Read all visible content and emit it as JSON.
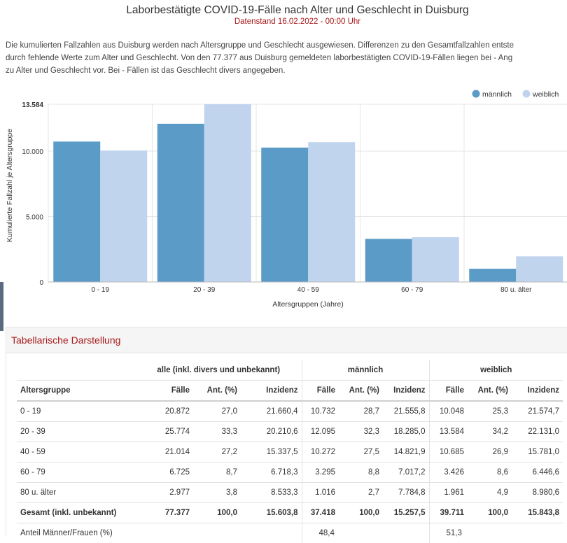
{
  "header": {
    "title": "Laborbestätigte COVID-19-Fälle nach Alter und Geschlecht in Duisburg",
    "subtitle": "Datenstand 16.02.2022 - 00:00 Uhr"
  },
  "description": {
    "line1": "Die kumulierten Fallzahlen aus Duisburg werden nach Altersgruppe und Geschlecht ausgewiesen. Differenzen zu den Gesamtfallzahlen entste",
    "line2": "durch fehlende Werte zum Alter und Geschlecht. Von den 77.377 aus Duisburg gemeldeten laborbestätigten COVID-19-Fällen liegen bei - Ang",
    "line3": "zu Alter und Geschlecht vor. Bei - Fällen ist das Geschlecht divers angegeben."
  },
  "chart_data": {
    "type": "bar",
    "title": "",
    "xlabel": "Altersgruppen (Jahre)",
    "ylabel": "Kumulierte Fallzahl je Altersgruppe",
    "categories": [
      "0 - 19",
      "20 - 39",
      "40 - 59",
      "60 - 79",
      "80 u. älter"
    ],
    "series": [
      {
        "name": "männlich",
        "color": "#5b9bc8",
        "values": [
          10732,
          12095,
          10272,
          3295,
          1016
        ]
      },
      {
        "name": "weiblich",
        "color": "#c0d4ee",
        "values": [
          10048,
          13584,
          10685,
          3426,
          1961
        ]
      }
    ],
    "yticks": [
      {
        "value": 0,
        "label": "0"
      },
      {
        "value": 5000,
        "label": "5.000"
      },
      {
        "value": 10000,
        "label": "10.000"
      },
      {
        "value": 13584,
        "label": "13.584"
      }
    ],
    "ylim": [
      0,
      13584
    ],
    "grid": true,
    "legend": "top-right"
  },
  "table": {
    "panel_title": "Tabellarische Darstellung",
    "group_headers": [
      "alle (inkl. divers und unbekannt)",
      "männlich",
      "weiblich"
    ],
    "column_headers": [
      "Altersgruppe",
      "Fälle",
      "Ant. (%)",
      "Inzidenz",
      "Fälle",
      "Ant. (%)",
      "Inzidenz",
      "Fälle",
      "Ant. (%)",
      "Inzidenz"
    ],
    "rows": [
      [
        "0 - 19",
        "20.872",
        "27,0",
        "21.660,4",
        "10.732",
        "28,7",
        "21.555,8",
        "10.048",
        "25,3",
        "21.574,7"
      ],
      [
        "20 - 39",
        "25.774",
        "33,3",
        "20.210,6",
        "12.095",
        "32,3",
        "18.285,0",
        "13.584",
        "34,2",
        "22.131,0"
      ],
      [
        "40 - 59",
        "21.014",
        "27,2",
        "15.337,5",
        "10.272",
        "27,5",
        "14.821,9",
        "10.685",
        "26,9",
        "15.781,0"
      ],
      [
        "60 - 79",
        "6.725",
        "8,7",
        "6.718,3",
        "3.295",
        "8,8",
        "7.017,2",
        "3.426",
        "8,6",
        "6.446,6"
      ],
      [
        "80 u. älter",
        "2.977",
        "3,8",
        "8.533,3",
        "1.016",
        "2,7",
        "7.784,8",
        "1.961",
        "4,9",
        "8.980,6"
      ]
    ],
    "total_row": [
      "Gesamt (inkl. unbekannt)",
      "77.377",
      "100,0",
      "15.603,8",
      "37.418",
      "100,0",
      "15.257,5",
      "39.711",
      "100,0",
      "15.843,8"
    ],
    "ratio_row": {
      "label": "Anteil Männer/Frauen (%)",
      "male": "48,4",
      "female": "51,3"
    }
  }
}
